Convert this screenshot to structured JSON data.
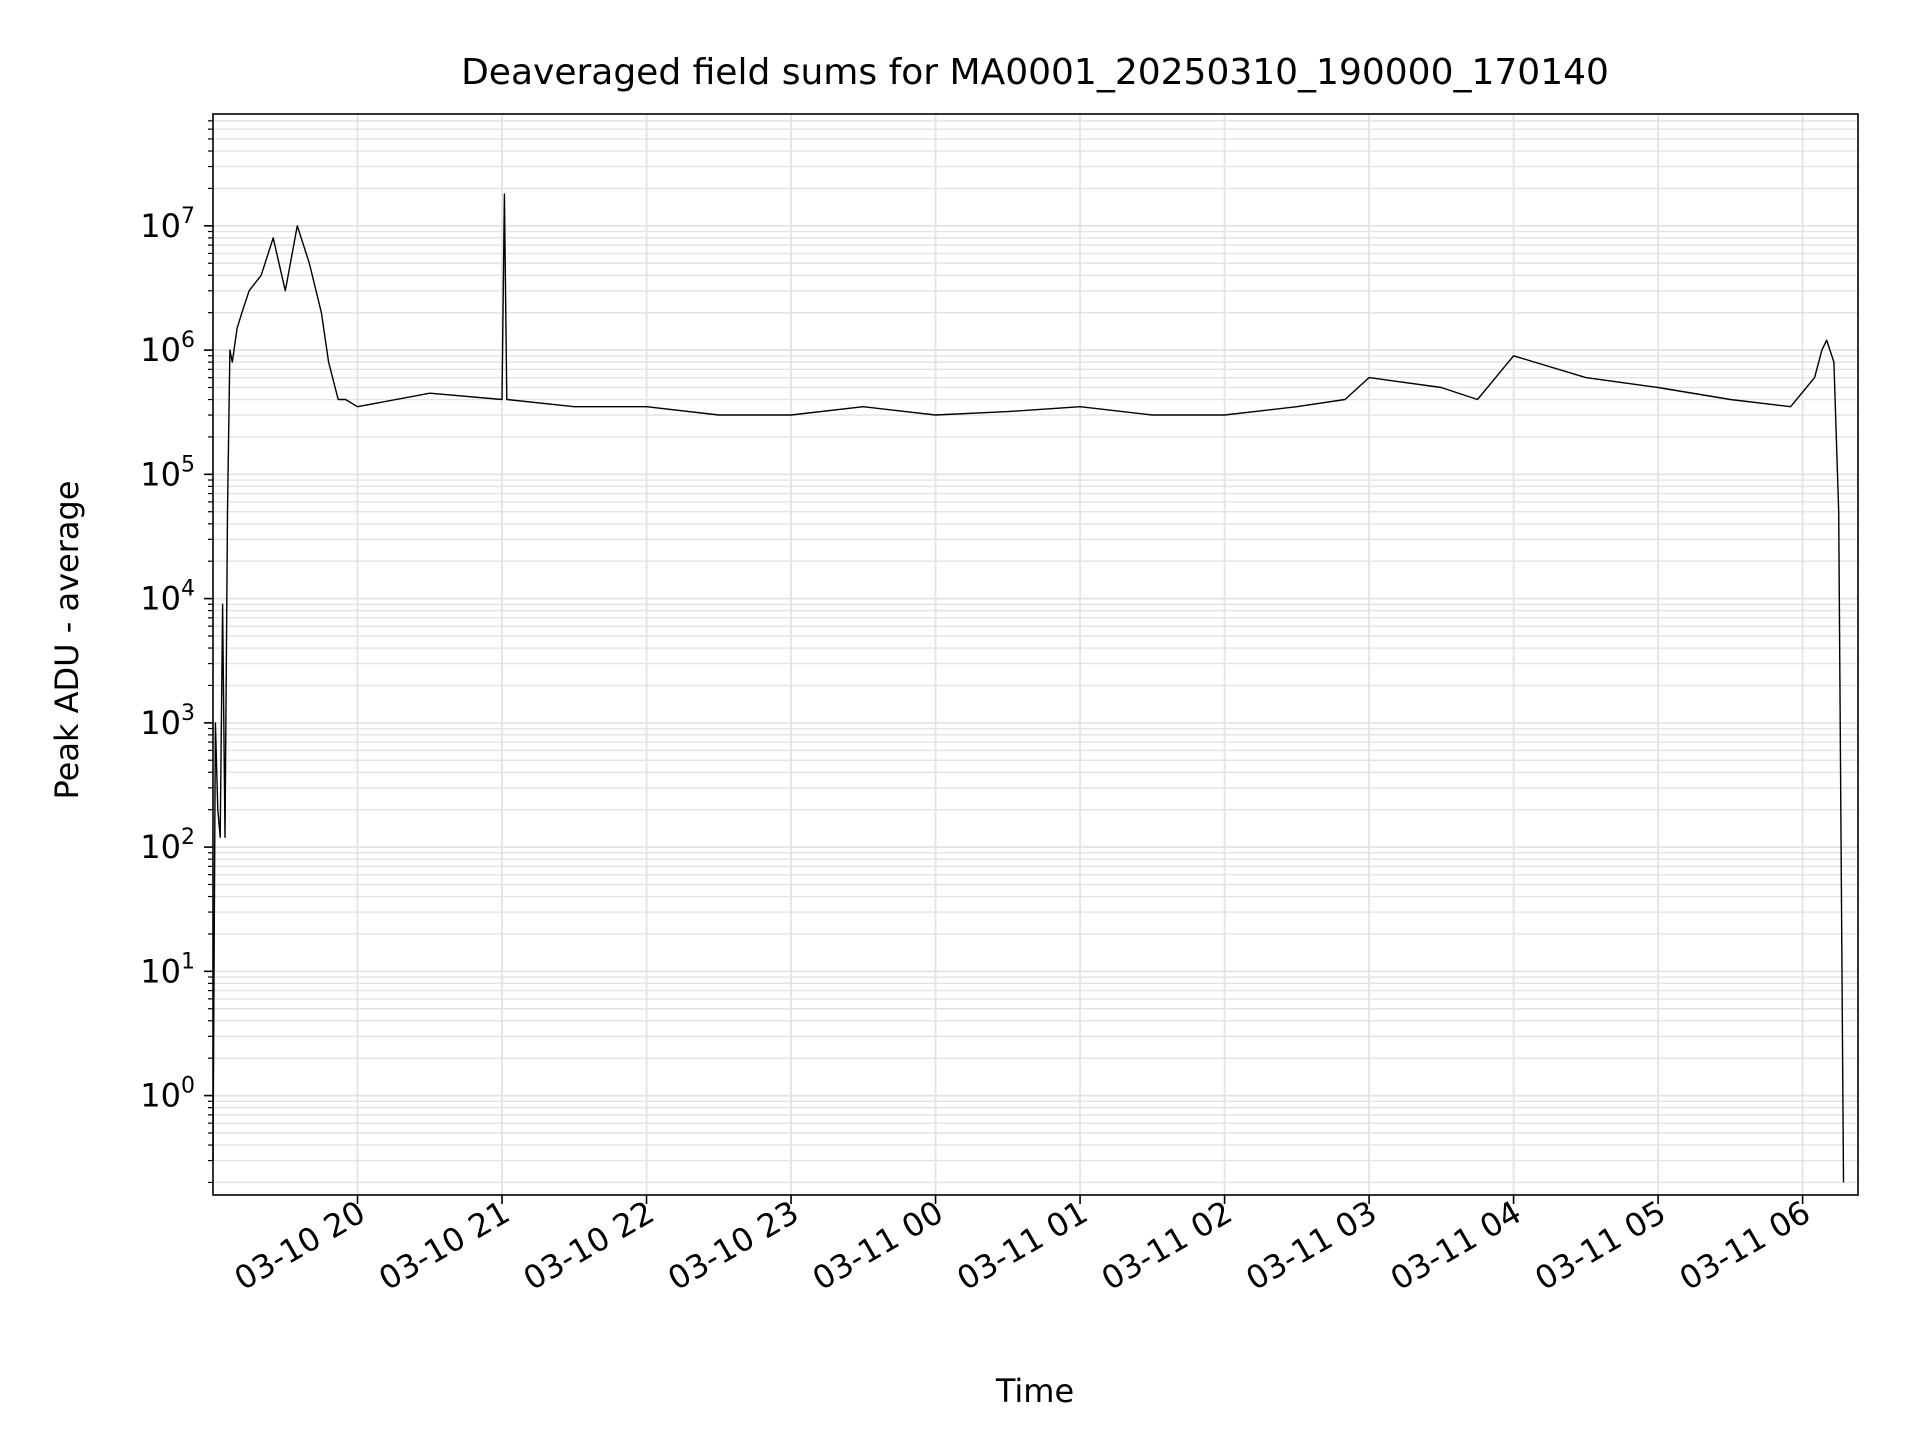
{
  "chart_data": {
    "type": "line",
    "title": "Deaveraged field sums for MA0001_20250310_190000_170140",
    "xlabel": "Time",
    "ylabel": "Peak ADU - average",
    "yscale": "log",
    "ylim_exponents": [
      -0.8,
      7.9
    ],
    "xlim": [
      "2025-03-10 19:00",
      "2025-03-11 06:23"
    ],
    "grid": true,
    "legend": "none",
    "line_color": "#000000",
    "grid_color": "#e3e3e3",
    "x_ticks": [
      {
        "value": "2025-03-10 20:00",
        "label": "03-10 20"
      },
      {
        "value": "2025-03-10 21:00",
        "label": "03-10 21"
      },
      {
        "value": "2025-03-10 22:00",
        "label": "03-10 22"
      },
      {
        "value": "2025-03-10 23:00",
        "label": "03-10 23"
      },
      {
        "value": "2025-03-11 00:00",
        "label": "03-11 00"
      },
      {
        "value": "2025-03-11 01:00",
        "label": "03-11 01"
      },
      {
        "value": "2025-03-11 02:00",
        "label": "03-11 02"
      },
      {
        "value": "2025-03-11 03:00",
        "label": "03-11 03"
      },
      {
        "value": "2025-03-11 04:00",
        "label": "03-11 04"
      },
      {
        "value": "2025-03-11 05:00",
        "label": "03-11 05"
      },
      {
        "value": "2025-03-11 06:00",
        "label": "03-11 06"
      }
    ],
    "y_ticks": [
      {
        "exp": 0,
        "base": "10",
        "sup": "0"
      },
      {
        "exp": 1,
        "base": "10",
        "sup": "1"
      },
      {
        "exp": 2,
        "base": "10",
        "sup": "2"
      },
      {
        "exp": 3,
        "base": "10",
        "sup": "3"
      },
      {
        "exp": 4,
        "base": "10",
        "sup": "4"
      },
      {
        "exp": 5,
        "base": "10",
        "sup": "5"
      },
      {
        "exp": 6,
        "base": "10",
        "sup": "6"
      },
      {
        "exp": 7,
        "base": "10",
        "sup": "7"
      }
    ],
    "series": [
      {
        "x": [
          "2025-03-10 19:00",
          "2025-03-10 19:01",
          "2025-03-10 19:02",
          "2025-03-10 19:03",
          "2025-03-10 19:04",
          "2025-03-10 19:05",
          "2025-03-10 19:06",
          "2025-03-10 19:07",
          "2025-03-10 19:08",
          "2025-03-10 19:10",
          "2025-03-10 19:12",
          "2025-03-10 19:15",
          "2025-03-10 19:20",
          "2025-03-10 19:25",
          "2025-03-10 19:30",
          "2025-03-10 19:35",
          "2025-03-10 19:40",
          "2025-03-10 19:45",
          "2025-03-10 19:48",
          "2025-03-10 19:52",
          "2025-03-10 19:55",
          "2025-03-10 20:00",
          "2025-03-10 20:30",
          "2025-03-10 21:00",
          "2025-03-10 21:01",
          "2025-03-10 21:02",
          "2025-03-10 21:30",
          "2025-03-10 22:00",
          "2025-03-10 22:30",
          "2025-03-10 23:00",
          "2025-03-10 23:30",
          "2025-03-11 00:00",
          "2025-03-11 00:30",
          "2025-03-11 01:00",
          "2025-03-11 01:30",
          "2025-03-11 02:00",
          "2025-03-11 02:30",
          "2025-03-11 02:50",
          "2025-03-11 03:00",
          "2025-03-11 03:30",
          "2025-03-11 03:45",
          "2025-03-11 04:00",
          "2025-03-11 04:30",
          "2025-03-11 05:00",
          "2025-03-11 05:30",
          "2025-03-11 05:55",
          "2025-03-11 06:05",
          "2025-03-11 06:08",
          "2025-03-11 06:10",
          "2025-03-11 06:13",
          "2025-03-11 06:15",
          "2025-03-11 06:17"
        ],
        "y": [
          0.3,
          1000,
          200,
          120,
          9000,
          120,
          50000,
          1000000,
          800000,
          1500000,
          2000000,
          3000000,
          4000000,
          8000000,
          3000000,
          10000000,
          5000000,
          2000000,
          800000,
          400000,
          400000,
          350000,
          450000,
          400000,
          18000000,
          400000,
          350000,
          350000,
          300000,
          300000,
          350000,
          300000,
          320000,
          350000,
          300000,
          300000,
          350000,
          400000,
          600000,
          500000,
          400000,
          900000,
          600000,
          500000,
          400000,
          350000,
          600000,
          1000000,
          1200000,
          800000,
          50000,
          0.2
        ]
      }
    ]
  }
}
